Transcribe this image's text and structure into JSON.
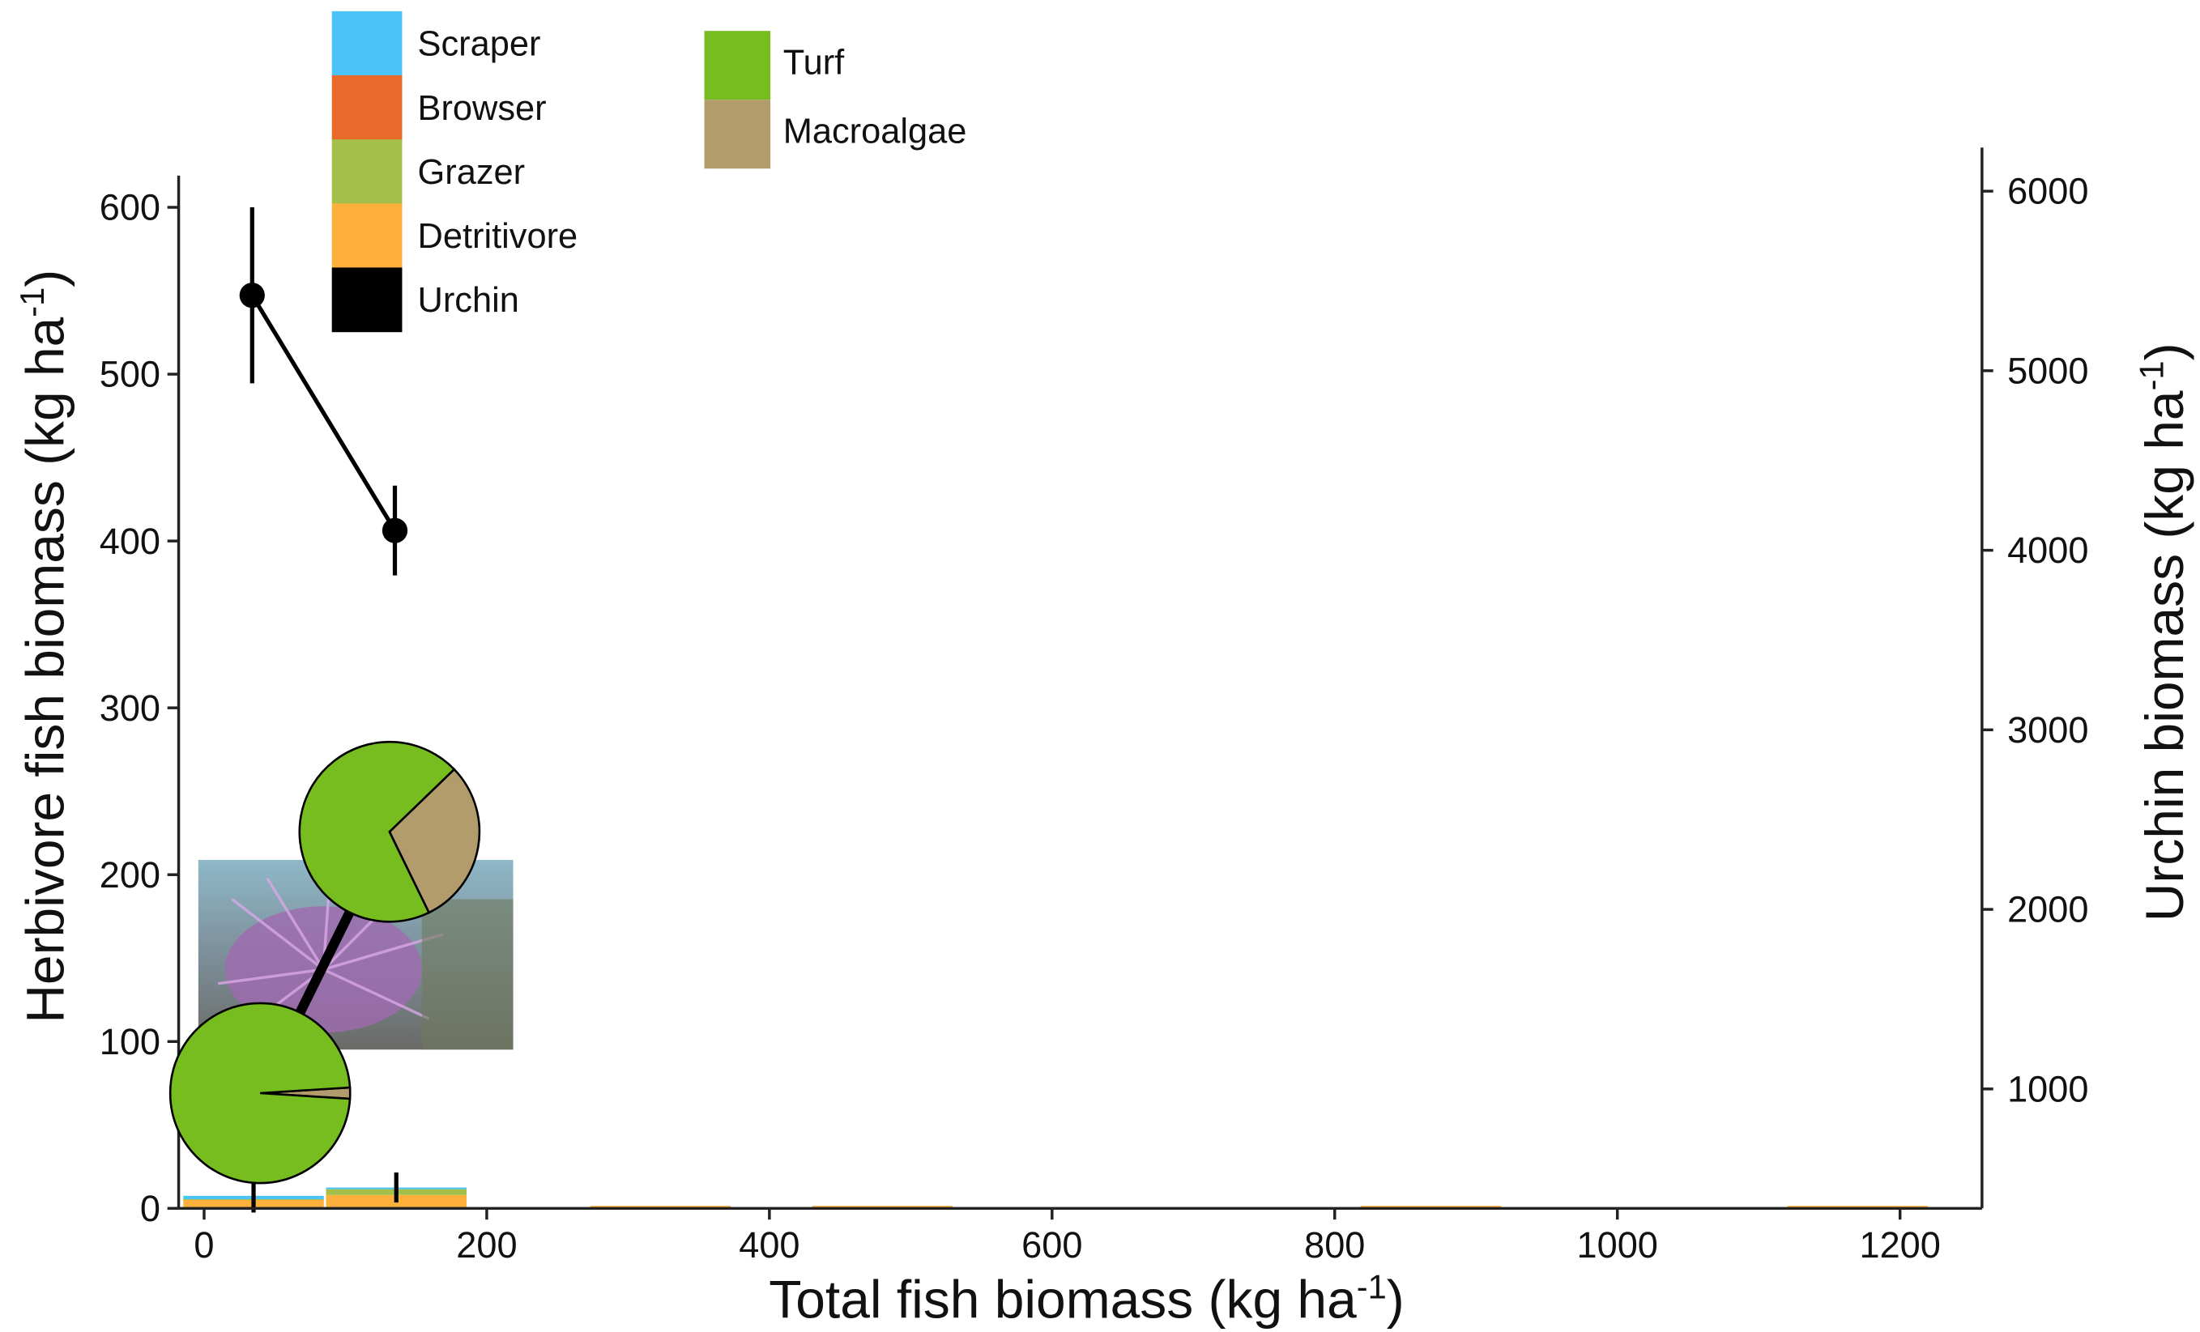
{
  "chart_data": [
    {
      "type": "bar",
      "xlabel": {
        "text": "Total fish biomass (kg ha",
        "sup": "-1",
        "end": ")"
      },
      "ylabel": {
        "text": "Herbivore fish biomass (kg ha",
        "sup": "-1",
        "end": ")"
      },
      "y2label": {
        "text": "Urchin biomass (kg ha",
        "sup": "-1",
        "end": ")"
      },
      "x": [
        35,
        136,
        323,
        480,
        868,
        1170
      ],
      "xlim": [
        -18,
        1258
      ],
      "xticks": [
        0,
        200,
        400,
        600,
        800,
        1000,
        1200
      ],
      "ylim": [
        0,
        619
      ],
      "yticks": [
        0,
        100,
        200,
        300,
        400,
        500,
        600
      ],
      "y2lim": [
        335,
        6243
      ],
      "y2ticks": [
        1000,
        2000,
        3000,
        4000,
        5000,
        6000
      ],
      "series": [
        {
          "name": "Scraper",
          "color": "#4cc3f7",
          "values": [
            2,
            1,
            0,
            0,
            0,
            0
          ]
        },
        {
          "name": "Browser",
          "color": "#e8692a",
          "values": [
            0,
            0,
            0,
            0,
            0,
            0
          ]
        },
        {
          "name": "Grazer",
          "color": "#a4c04a",
          "values": [
            0.5,
            3.5,
            0,
            0,
            0,
            0
          ]
        },
        {
          "name": "Detritivore",
          "color": "#fdb03c",
          "values": [
            5,
            8,
            1.5,
            1.5,
            1.5,
            1.5
          ]
        },
        {
          "name": "Urchin",
          "color": "#000000",
          "axis": "y2",
          "x": [
            34,
            135
          ],
          "values": [
            5420,
            4110
          ],
          "errors": [
            490,
            250
          ]
        }
      ],
      "total_errors": [
        10,
        9,
        null,
        null,
        null,
        null
      ]
    },
    {
      "type": "pie",
      "series": [
        {
          "name": "Turf",
          "color": "#77bd1f",
          "values": [
            70,
            98
          ]
        },
        {
          "name": "Macroalgae",
          "color": "#b39c6c",
          "values": [
            30,
            2
          ]
        }
      ]
    }
  ]
}
